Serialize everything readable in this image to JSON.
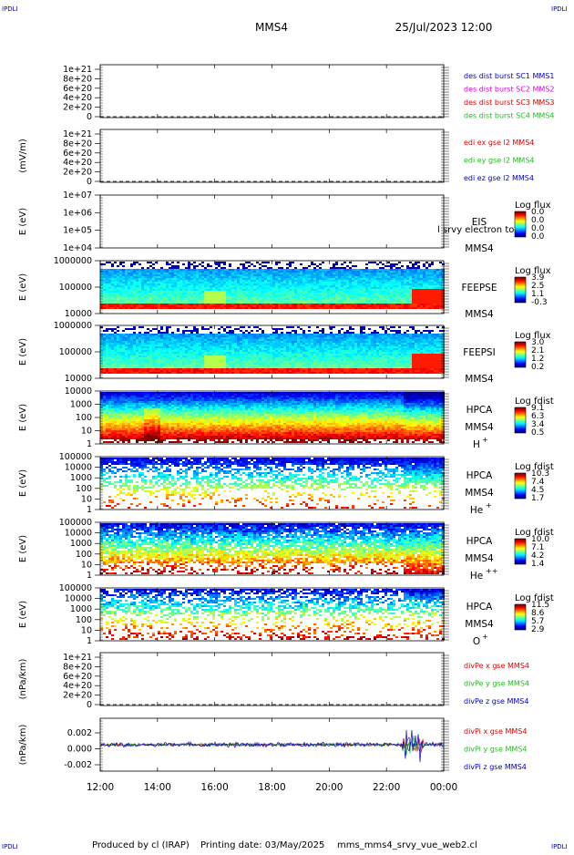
{
  "header": {
    "corner_left": "IPDLI",
    "corner_right": "IPDLI",
    "title": "MMS4",
    "datetime": "25/Jul/2023 12:00"
  },
  "footer": {
    "corner_left": "IPDLI",
    "corner_right": "IPDLI",
    "produced_by": "Produced by cl (IRAP)",
    "printing_date": "Printing date: 03/May/2025",
    "script_name": "mms_mms4_srvy_vue_web2.cl"
  },
  "colors": {
    "red": "#e00000",
    "green": "#22bb22",
    "blue": "#0000cc",
    "magenta": "#e000e0",
    "text": "#000000"
  },
  "chart_data": {
    "type": "line",
    "time_axis": {
      "start": "12:00",
      "end": "00:00",
      "tick_labels": [
        "12:00",
        "14:00",
        "16:00",
        "18:00",
        "20:00",
        "22:00",
        "00:00"
      ]
    },
    "panels": [
      {
        "id": "dist",
        "kind": "line",
        "ylabel": "",
        "ticks": [
          "1e+21",
          "8e+20",
          "6e+20",
          "4e+20",
          "2e+20",
          "0"
        ],
        "zero_dashed": true,
        "legend": [
          {
            "text": "des dist burst SC1 MMS1",
            "color": "#0000cc"
          },
          {
            "text": "des dist burst SC2 MMS2",
            "color": "#e000e0"
          },
          {
            "text": "des dist burst SC3 MMS3",
            "color": "#e00000"
          },
          {
            "text": "des dist burst SC4 MMS4",
            "color": "#22bb22"
          }
        ]
      },
      {
        "id": "edi",
        "kind": "line",
        "ylabel": "(mV/m)",
        "ticks": [
          "1e+21",
          "8e+20",
          "6e+20",
          "4e+20",
          "2e+20",
          "0"
        ],
        "zero_dashed": true,
        "legend": [
          {
            "text": "edi ex gse l2 MMS4",
            "color": "#e00000"
          },
          {
            "text": "edi ey gse l2 MMS4",
            "color": "#22bb22"
          },
          {
            "text": "edi ez gse l2 MMS4",
            "color": "#0000cc"
          }
        ]
      },
      {
        "id": "eis",
        "kind": "spectrogram",
        "ylabel": "E (eV)",
        "ticks": [
          "1e+07",
          "1e+06",
          "1e+05",
          "1e+04"
        ],
        "instrument": [
          "EIS",
          "MMS4"
        ],
        "overlay_text": "l srvy electron to",
        "colorbar_title": "Log flux",
        "colorbar_ticks": [
          "0.0",
          "0.0",
          "0.0",
          "0.0"
        ],
        "fill": "none"
      },
      {
        "id": "feepse",
        "kind": "spectrogram",
        "ylabel": "E (eV)",
        "ticks": [
          "1000000",
          "100000",
          "10000"
        ],
        "instrument": [
          "FEEPSE",
          "MMS4"
        ],
        "colorbar_title": "Log flux",
        "colorbar_ticks": [
          "3.9",
          "2.5",
          "1.1",
          "-0.3"
        ],
        "fill": "feeps"
      },
      {
        "id": "feepsi",
        "kind": "spectrogram",
        "ylabel": "E (eV)",
        "ticks": [
          "1000000",
          "100000",
          "10000"
        ],
        "instrument": [
          "FEEPSI",
          "MMS4"
        ],
        "colorbar_title": "Log flux",
        "colorbar_ticks": [
          "3.0",
          "2.1",
          "1.2",
          "0.2"
        ],
        "fill": "feeps"
      },
      {
        "id": "hpca_h",
        "kind": "spectrogram",
        "ylabel": "E (eV)",
        "ticks": [
          "10000",
          "1000",
          "100",
          "10",
          "1"
        ],
        "instrument": [
          "HPCA",
          "MMS4"
        ],
        "species": "H",
        "charge": "+",
        "colorbar_title": "Log fdist",
        "colorbar_ticks": [
          "9.1",
          "6.3",
          "3.4",
          "0.5"
        ],
        "fill": "dense"
      },
      {
        "id": "hpca_he",
        "kind": "spectrogram",
        "ylabel": "E (eV)",
        "ticks": [
          "100000",
          "10000",
          "1000",
          "100",
          "10",
          "1"
        ],
        "instrument": [
          "HPCA",
          "MMS4"
        ],
        "species": "He",
        "charge": "+",
        "colorbar_title": "Log fdist",
        "colorbar_ticks": [
          "10.3",
          "7.4",
          "4.5",
          "1.7"
        ],
        "fill": "sparse"
      },
      {
        "id": "hpca_he2",
        "kind": "spectrogram",
        "ylabel": "E (eV)",
        "ticks": [
          "100000",
          "10000",
          "1000",
          "100",
          "10",
          "1"
        ],
        "instrument": [
          "HPCA",
          "MMS4"
        ],
        "species": "He",
        "charge": "++",
        "colorbar_title": "Log fdist",
        "colorbar_ticks": [
          "10.0",
          "7.1",
          "4.2",
          "1.4"
        ],
        "fill": "medium"
      },
      {
        "id": "hpca_o",
        "kind": "spectrogram",
        "ylabel": "E (eV)",
        "ticks": [
          "100000",
          "10000",
          "1000",
          "100",
          "10",
          "1"
        ],
        "instrument": [
          "HPCA",
          "MMS4"
        ],
        "species": "O",
        "charge": "+",
        "colorbar_title": "Log fdist",
        "colorbar_ticks": [
          "11.5",
          "8.6",
          "5.7",
          "2.9"
        ],
        "fill": "sparse2"
      },
      {
        "id": "divpe",
        "kind": "line",
        "ylabel": "(nPa/km)",
        "ticks": [
          "1e+21",
          "8e+20",
          "6e+20",
          "4e+20",
          "2e+20",
          "0"
        ],
        "zero_dashed": true,
        "legend": [
          {
            "text": "divPe x gse MMS4",
            "color": "#e00000"
          },
          {
            "text": "divPe y gse MMS4",
            "color": "#22bb22"
          },
          {
            "text": "divPe z gse MMS4",
            "color": "#0000cc"
          }
        ]
      },
      {
        "id": "divpi",
        "kind": "line",
        "ylabel": "(nPa/km)",
        "ticks": [
          "0.002",
          "0.000",
          "-0.002"
        ],
        "ylim": [
          -0.003,
          0.003
        ],
        "zero_dashed": true,
        "legend": [
          {
            "text": "divPi x gse MMS4",
            "color": "#e00000"
          },
          {
            "text": "divPi y gse MMS4",
            "color": "#22bb22"
          },
          {
            "text": "divPi z gse MMS4",
            "color": "#0000cc"
          }
        ]
      }
    ]
  }
}
